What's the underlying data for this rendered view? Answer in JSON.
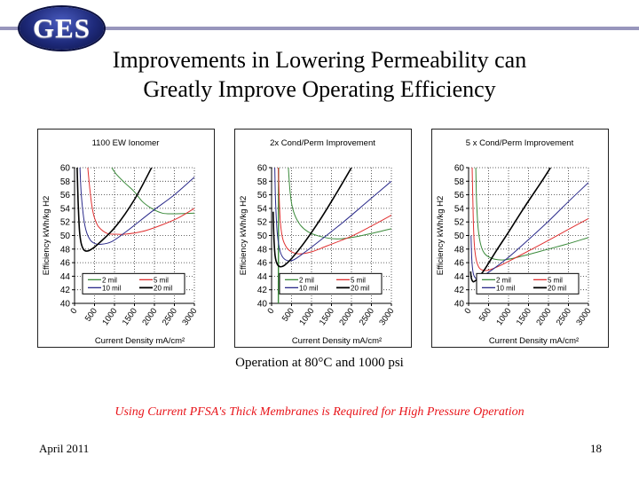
{
  "logo": {
    "text": "GES"
  },
  "header_line_color": "#9896bc",
  "title": {
    "line1": "Improvements in Lowering Permeability can",
    "line2": "Greatly Improve Operating Efficiency"
  },
  "subtitle": "Operation at 80°C and 1000 psi",
  "callout": "Using Current PFSA's Thick Membranes is Required for High Pressure Operation",
  "callout_color": "#e8141a",
  "footer": {
    "date": "April 2011",
    "page": "18"
  },
  "chart_data": [
    {
      "type": "line",
      "title": "1100 EW Ionomer",
      "xlabel": "Current Density mA/cm²",
      "ylabel": "Efficiency kWh/kg H2",
      "xlim": [
        0,
        3000
      ],
      "ylim": [
        40,
        60
      ],
      "xticks": [
        "0",
        "500",
        "1000",
        "1500",
        "2000",
        "2500",
        "3000"
      ],
      "yticks": [
        "40",
        "42",
        "44",
        "46",
        "48",
        "50",
        "52",
        "54",
        "56",
        "58",
        "60"
      ],
      "grid": true,
      "legend": "bottom",
      "series": [
        {
          "name": "2 mil",
          "color": "#3a8a3a",
          "points": [
            [
              930,
              60
            ],
            [
              1050,
              59
            ],
            [
              1250,
              57.8
            ],
            [
              1490,
              56.5
            ],
            [
              1700,
              55
            ],
            [
              1930,
              54
            ],
            [
              2200,
              53.3
            ],
            [
              2490,
              53.2
            ],
            [
              3000,
              53.3
            ]
          ]
        },
        {
          "name": "5 mil",
          "color": "#e03030",
          "points": [
            [
              330,
              60
            ],
            [
              380,
              57
            ],
            [
              430,
              54.5
            ],
            [
              490,
              52.8
            ],
            [
              600,
              51.3
            ],
            [
              820,
              50.3
            ],
            [
              1050,
              50.2
            ],
            [
              1270,
              50.2
            ],
            [
              1700,
              50.6
            ],
            [
              2160,
              51.5
            ],
            [
              2600,
              52.6
            ],
            [
              3000,
              54
            ]
          ]
        },
        {
          "name": "10 mil",
          "color": "#2a2a8a",
          "points": [
            [
              135,
              60
            ],
            [
              170,
              56
            ],
            [
              230,
              52.5
            ],
            [
              300,
              50.5
            ],
            [
              400,
              49.3
            ],
            [
              520,
              48.8
            ],
            [
              650,
              48.7
            ],
            [
              930,
              49.1
            ],
            [
              1300,
              50.6
            ],
            [
              1930,
              53.5
            ],
            [
              2500,
              56
            ],
            [
              3000,
              58.6
            ]
          ]
        },
        {
          "name": "20 mil",
          "color": "#000000",
          "points": [
            [
              65,
              60
            ],
            [
              90,
              55
            ],
            [
              120,
              51
            ],
            [
              160,
              49
            ],
            [
              220,
              48
            ],
            [
              300,
              47.7
            ],
            [
              400,
              47.9
            ],
            [
              600,
              48.8
            ],
            [
              1040,
              51.4
            ],
            [
              1500,
              55.3
            ],
            [
              1930,
              60
            ]
          ]
        }
      ]
    },
    {
      "type": "line",
      "title": "2x Cond/Perm Improvement",
      "xlabel": "Current Density mA/cm²",
      "ylabel": "Efficiency kWh/kg H2",
      "xlim": [
        0,
        3000
      ],
      "ylim": [
        40,
        60
      ],
      "xticks": [
        "0",
        "500",
        "1000",
        "1500",
        "2000",
        "2500",
        "3000"
      ],
      "yticks": [
        "40",
        "42",
        "44",
        "46",
        "48",
        "50",
        "52",
        "54",
        "56",
        "58",
        "60"
      ],
      "grid": true,
      "legend": "bottom",
      "series": [
        {
          "name": "2 mil",
          "color": "#3a8a3a",
          "points": [
            [
              170,
              40
            ],
            [
              175,
              48
            ],
            [
              190,
              44
            ],
            [
              230,
              40
            ]
          ],
          "points_upper": [
            [
              420,
              60
            ],
            [
              470,
              56
            ],
            [
              550,
              53.5
            ],
            [
              700,
              51.7
            ],
            [
              900,
              50.6
            ],
            [
              1200,
              49.9
            ],
            [
              1600,
              49.5
            ],
            [
              2000,
              49.7
            ],
            [
              2500,
              50.3
            ],
            [
              3000,
              51
            ]
          ]
        },
        {
          "name": "5 mil",
          "color": "#e03030",
          "points": [
            [
              170,
              60
            ],
            [
              190,
              56
            ],
            [
              220,
              52
            ],
            [
              280,
              49.5
            ],
            [
              380,
              48.2
            ],
            [
              500,
              47.6
            ],
            [
              700,
              47.3
            ],
            [
              1000,
              47.6
            ],
            [
              1400,
              48.5
            ],
            [
              2000,
              49.9
            ],
            [
              2500,
              51.4
            ],
            [
              3000,
              53
            ]
          ]
        },
        {
          "name": "10 mil",
          "color": "#2a2a8a",
          "points": [
            [
              80,
              60
            ],
            [
              100,
              55
            ],
            [
              140,
              50.5
            ],
            [
              200,
              48
            ],
            [
              280,
              46.8
            ],
            [
              400,
              46.3
            ],
            [
              550,
              46.4
            ],
            [
              800,
              47.4
            ],
            [
              1200,
              49.2
            ],
            [
              1800,
              52
            ],
            [
              2400,
              55
            ],
            [
              3000,
              58
            ]
          ]
        },
        {
          "name": "20 mil",
          "color": "#000000",
          "points": [
            [
              40,
              53.5
            ],
            [
              60,
              49.5
            ],
            [
              90,
              47
            ],
            [
              140,
              45.8
            ],
            [
              220,
              45.4
            ],
            [
              320,
              45.6
            ],
            [
              500,
              46.6
            ],
            [
              800,
              48.8
            ],
            [
              1200,
              52.2
            ],
            [
              1600,
              56
            ],
            [
              2000,
              60
            ]
          ]
        }
      ]
    },
    {
      "type": "line",
      "title": "5 x Cond/Perm Improvement",
      "xlabel": "Current Density mA/cm²",
      "ylabel": "Efficiency kWh/kg H2",
      "xlim": [
        0,
        3000
      ],
      "ylim": [
        40,
        60
      ],
      "xticks": [
        "0",
        "500",
        "1000",
        "1500",
        "2000",
        "2500",
        "3000"
      ],
      "yticks": [
        "40",
        "42",
        "44",
        "46",
        "48",
        "50",
        "52",
        "54",
        "56",
        "58",
        "60"
      ],
      "grid": true,
      "legend": "bottom",
      "series": [
        {
          "name": "2 mil",
          "color": "#3a8a3a",
          "points": [
            [
              180,
              60
            ],
            [
              200,
              55
            ],
            [
              240,
              51
            ],
            [
              310,
              48.5
            ],
            [
              420,
              47.2
            ],
            [
              600,
              46.6
            ],
            [
              800,
              46.4
            ],
            [
              1000,
              46.5
            ],
            [
              1500,
              47.2
            ],
            [
              2000,
              48
            ],
            [
              2500,
              48.8
            ],
            [
              3000,
              49.7
            ]
          ]
        },
        {
          "name": "5 mil",
          "color": "#e03030",
          "points": [
            [
              90,
              60
            ],
            [
              110,
              54
            ],
            [
              140,
              49
            ],
            [
              190,
              46.5
            ],
            [
              260,
              45.3
            ],
            [
              350,
              44.9
            ],
            [
              500,
              44.9
            ],
            [
              800,
              45.6
            ],
            [
              1200,
              46.8
            ],
            [
              2000,
              49.3
            ],
            [
              2500,
              50.9
            ],
            [
              3000,
              52.5
            ]
          ]
        },
        {
          "name": "10 mil",
          "color": "#2a2a8a",
          "points": [
            [
              60,
              50
            ],
            [
              80,
              46.5
            ],
            [
              110,
              44.6
            ],
            [
              160,
              43.8
            ],
            [
              230,
              43.6
            ],
            [
              350,
              44
            ],
            [
              600,
              45
            ],
            [
              1000,
              46.8
            ],
            [
              1500,
              49.4
            ],
            [
              2000,
              52.1
            ],
            [
              2500,
              55
            ],
            [
              3000,
              57.8
            ]
          ]
        },
        {
          "name": "20 mil",
          "color": "#000000",
          "points": [
            [
              50,
              44.7
            ],
            [
              70,
              43.7
            ],
            [
              110,
              43.2
            ],
            [
              160,
              43.3
            ],
            [
              230,
              43.7
            ],
            [
              400,
              45
            ],
            [
              700,
              47.8
            ],
            [
              1000,
              50.5
            ],
            [
              1400,
              54.2
            ],
            [
              1800,
              57.7
            ],
            [
              2050,
              60
            ]
          ]
        }
      ]
    }
  ]
}
